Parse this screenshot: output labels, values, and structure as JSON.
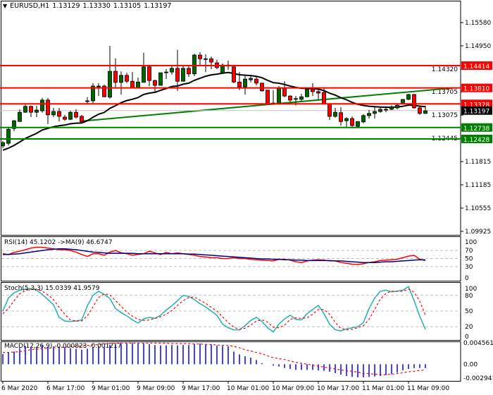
{
  "header": {
    "menu_icon": "triangle-down-icon",
    "symbol": "EURUSD,H1",
    "open": "1.13129",
    "high": "1.13330",
    "low": "1.13105",
    "close": "1.13197"
  },
  "colors": {
    "bull": "#006400",
    "bear": "#ff0000",
    "ma": "#000000",
    "trendline": "#008000",
    "resistance": "#ff0000",
    "support": "#008000",
    "rsi": "#ff0000",
    "rsi_ma": "#000080",
    "stoch_main": "#20b2aa",
    "stoch_signal": "#ff0000",
    "macd_hist": "#0000ff",
    "macd_signal": "#ff0000"
  },
  "chart_data": [
    {
      "type": "candlestick",
      "title": "EURUSD,H1",
      "ylim": [
        1.09925,
        1.1558
      ],
      "y_ticks": [
        "1.15580",
        "1.14950",
        "1.14320",
        "1.13705",
        "1.13075",
        "1.12445",
        "1.11815",
        "1.11185",
        "1.10555",
        "1.09925"
      ],
      "x_tick_labels": [
        "6 Mar 2020",
        "6 Mar 17:00",
        "9 Mar 01:00",
        "9 Mar 09:00",
        "9 Mar 17:00",
        "10 Mar 01:00",
        "10 Mar 09:00",
        "10 Mar 17:00",
        "11 Mar 01:00",
        "11 Mar 09:00"
      ],
      "ohlc": [
        [
          1.1224,
          1.1237,
          1.1218,
          1.1233
        ],
        [
          1.1231,
          1.1276,
          1.1225,
          1.1269
        ],
        [
          1.1271,
          1.1294,
          1.1264,
          1.1292
        ],
        [
          1.129,
          1.1323,
          1.129,
          1.1315
        ],
        [
          1.1315,
          1.1336,
          1.1314,
          1.1331
        ],
        [
          1.1331,
          1.1333,
          1.1302,
          1.1315
        ],
        [
          1.1315,
          1.1333,
          1.1302,
          1.1321
        ],
        [
          1.1319,
          1.1354,
          1.1314,
          1.1348
        ],
        [
          1.1348,
          1.1354,
          1.1283,
          1.1308
        ],
        [
          1.1308,
          1.1327,
          1.1302,
          1.1317
        ],
        [
          1.1317,
          1.1327,
          1.129,
          1.1304
        ],
        [
          1.1302,
          1.1308,
          1.1292,
          1.1296
        ],
        [
          1.1296,
          1.1319,
          1.1294,
          1.1315
        ],
        [
          1.1315,
          1.1323,
          1.1298,
          1.1302
        ],
        [
          1.1304,
          1.1308,
          1.1287,
          1.1289
        ],
        [
          1.1346,
          1.1356,
          1.1336,
          1.1346
        ],
        [
          1.1346,
          1.1394,
          1.1338,
          1.1386
        ],
        [
          1.1386,
          1.1394,
          1.1359,
          1.1386
        ],
        [
          1.1386,
          1.139,
          1.1356,
          1.1357
        ],
        [
          1.1356,
          1.1495,
          1.1352,
          1.1426
        ],
        [
          1.1426,
          1.1461,
          1.1382,
          1.1396
        ],
        [
          1.1396,
          1.1426,
          1.1363,
          1.1415
        ],
        [
          1.1415,
          1.1422,
          1.1394,
          1.1399
        ],
        [
          1.1399,
          1.1424,
          1.138,
          1.1382
        ],
        [
          1.1382,
          1.1409,
          1.138,
          1.1397
        ],
        [
          1.1396,
          1.1476,
          1.1396,
          1.1438
        ],
        [
          1.1438,
          1.1441,
          1.1386,
          1.1401
        ],
        [
          1.1401,
          1.1403,
          1.1371,
          1.1388
        ],
        [
          1.1388,
          1.1422,
          1.1388,
          1.1422
        ],
        [
          1.1424,
          1.1432,
          1.1405,
          1.1424
        ],
        [
          1.1424,
          1.144,
          1.1417,
          1.1434
        ],
        [
          1.1434,
          1.1484,
          1.1373,
          1.1399
        ],
        [
          1.1399,
          1.1443,
          1.1399,
          1.1434
        ],
        [
          1.1434,
          1.1441,
          1.1411,
          1.1419
        ],
        [
          1.1419,
          1.1474,
          1.1413,
          1.147
        ],
        [
          1.147,
          1.1478,
          1.1441,
          1.146
        ],
        [
          1.146,
          1.1472,
          1.1424,
          1.146
        ],
        [
          1.146,
          1.1466,
          1.1432,
          1.1451
        ],
        [
          1.1449,
          1.1457,
          1.1432,
          1.1436
        ],
        [
          1.1422,
          1.1447,
          1.142,
          1.1443
        ],
        [
          1.1443,
          1.1455,
          1.143,
          1.144
        ],
        [
          1.1438,
          1.144,
          1.1394,
          1.1397
        ],
        [
          1.1397,
          1.1424,
          1.1375,
          1.1384
        ],
        [
          1.1384,
          1.1413,
          1.1363,
          1.1405
        ],
        [
          1.1403,
          1.1413,
          1.1396,
          1.1407
        ],
        [
          1.1405,
          1.1411,
          1.1388,
          1.1394
        ],
        [
          1.1394,
          1.1394,
          1.1371,
          1.1373
        ],
        [
          1.1375,
          1.1375,
          1.1336,
          1.1338
        ],
        [
          1.134,
          1.1375,
          1.1336,
          1.1338
        ],
        [
          1.1338,
          1.1386,
          1.1336,
          1.138
        ],
        [
          1.138,
          1.1399,
          1.1356,
          1.1359
        ],
        [
          1.1359,
          1.1361,
          1.1342,
          1.1348
        ],
        [
          1.1352,
          1.1359,
          1.1333,
          1.1352
        ],
        [
          1.135,
          1.1365,
          1.1346,
          1.1357
        ],
        [
          1.1357,
          1.138,
          1.1356,
          1.1378
        ],
        [
          1.1378,
          1.1394,
          1.1359,
          1.1371
        ],
        [
          1.1371,
          1.1378,
          1.1348,
          1.1367
        ],
        [
          1.1369,
          1.1382,
          1.1338,
          1.1338
        ],
        [
          1.1338,
          1.134,
          1.1294,
          1.1304
        ],
        [
          1.1304,
          1.1327,
          1.13,
          1.1315
        ],
        [
          1.1314,
          1.1329,
          1.1279,
          1.129
        ],
        [
          1.1292,
          1.1302,
          1.1275,
          1.1298
        ],
        [
          1.1298,
          1.1304,
          1.1275,
          1.1279
        ],
        [
          1.1277,
          1.129,
          1.1275,
          1.129
        ],
        [
          1.1289,
          1.131,
          1.1285,
          1.1306
        ],
        [
          1.1306,
          1.1321,
          1.1298,
          1.1312
        ],
        [
          1.1312,
          1.1329,
          1.1298,
          1.1317
        ],
        [
          1.1317,
          1.1329,
          1.1314,
          1.1323
        ],
        [
          1.1323,
          1.1331,
          1.1315,
          1.1323
        ],
        [
          1.1323,
          1.1334,
          1.1321,
          1.1329
        ],
        [
          1.1327,
          1.1338,
          1.1323,
          1.1334
        ],
        [
          1.1338,
          1.135,
          1.1336,
          1.135
        ],
        [
          1.135,
          1.1365,
          1.1348,
          1.1363
        ],
        [
          1.1363,
          1.1365,
          1.1325,
          1.1327
        ],
        [
          1.1327,
          1.1333,
          1.1308,
          1.1312
        ],
        [
          1.1312,
          1.1333,
          1.131,
          1.1319
        ]
      ],
      "horizontal_levels": [
        {
          "price": 1.14414,
          "label": "1.14414",
          "kind": "resistance"
        },
        {
          "price": 1.1381,
          "label": "1.13810",
          "kind": "resistance"
        },
        {
          "price": 1.13378,
          "label": "1.13378",
          "kind": "resistance"
        },
        {
          "price": 1.12738,
          "label": "1.12738",
          "kind": "support"
        },
        {
          "price": 1.12428,
          "label": "1.12428",
          "kind": "support"
        }
      ],
      "current_price": "1.13197",
      "trendline": {
        "from": {
          "bar": 14,
          "price": 1.1291
        },
        "to": {
          "bar": 80,
          "price": 1.1381
        }
      }
    },
    {
      "type": "line",
      "title": "RSI(14) 45.1202  ->MA(9) 46.6747",
      "ylim": [
        0,
        100
      ],
      "y_ticks": [
        "100",
        "70",
        "50",
        "30",
        "0"
      ],
      "levels": [
        70,
        50,
        30
      ],
      "series": [
        {
          "name": "RSI(14)",
          "values": [
            62,
            60,
            65,
            68,
            72,
            76,
            78,
            78,
            76,
            74,
            72,
            72,
            70,
            66,
            60,
            55,
            62,
            62,
            58,
            66,
            70,
            64,
            62,
            58,
            60,
            62,
            68,
            64,
            60,
            65,
            62,
            64,
            62,
            60,
            58,
            55,
            54,
            52,
            52,
            50,
            50,
            52,
            50,
            50,
            48,
            47,
            46,
            45,
            44,
            48,
            48,
            46,
            42,
            40,
            44,
            46,
            47,
            46,
            44,
            44,
            40,
            38,
            36,
            35,
            37,
            40,
            42,
            45,
            46,
            47,
            48,
            52,
            56,
            58,
            48,
            45
          ]
        },
        {
          "name": "MA(9)",
          "values": [
            60,
            60,
            61,
            62,
            64,
            66,
            68,
            70,
            72,
            73,
            74,
            74,
            73,
            72,
            70,
            68,
            66,
            65,
            64,
            63,
            63,
            63,
            63,
            63,
            62,
            62,
            62,
            62,
            62,
            62,
            62,
            62,
            62,
            61,
            61,
            60,
            59,
            58,
            57,
            56,
            55,
            54,
            53,
            52,
            51,
            50,
            49,
            49,
            48,
            48,
            47,
            47,
            46,
            46,
            45,
            45,
            45,
            45,
            45,
            44,
            44,
            43,
            42,
            41,
            40,
            40,
            40,
            41,
            42,
            42,
            43,
            44,
            45,
            46,
            47,
            46.67
          ]
        }
      ]
    },
    {
      "type": "line",
      "title": "Stoch(5,3,3) 15.0339 41.9579",
      "ylim": [
        0,
        100
      ],
      "y_ticks": [
        "100",
        "80",
        "50",
        "20",
        "0"
      ],
      "levels": [
        80,
        50,
        20
      ],
      "series": [
        {
          "name": "Stoch main",
          "values": [
            50,
            75,
            85,
            90,
            92,
            93,
            90,
            82,
            72,
            62,
            38,
            31,
            30,
            31,
            33,
            60,
            80,
            88,
            82,
            74,
            55,
            47,
            41,
            33,
            27,
            35,
            38,
            36,
            42,
            52,
            60,
            70,
            80,
            78,
            72,
            64,
            58,
            50,
            42,
            25,
            18,
            14,
            14,
            22,
            32,
            38,
            30,
            18,
            10,
            25,
            35,
            42,
            34,
            33,
            45,
            53,
            61,
            45,
            25,
            14,
            12,
            16,
            18,
            20,
            28,
            55,
            75,
            88,
            90,
            87,
            88,
            90,
            97,
            70,
            40,
            15.03
          ]
        },
        {
          "name": "Stoch signal",
          "values": [
            45,
            55,
            70,
            83,
            89,
            92,
            92,
            88,
            81,
            72,
            57,
            44,
            33,
            31,
            31,
            41,
            58,
            76,
            83,
            81,
            70,
            59,
            48,
            40,
            34,
            32,
            33,
            36,
            39,
            44,
            51,
            61,
            70,
            76,
            77,
            71,
            65,
            57,
            50,
            39,
            28,
            19,
            15,
            17,
            23,
            31,
            33,
            29,
            19,
            18,
            23,
            34,
            37,
            36,
            37,
            44,
            53,
            53,
            44,
            28,
            17,
            14,
            15,
            18,
            22,
            34,
            53,
            73,
            84,
            88,
            88,
            88,
            92,
            86,
            69,
            41.96
          ]
        }
      ]
    },
    {
      "type": "bar",
      "title": "MACD(12,26,9) -0.000823 -0.001217",
      "ylim": [
        -0.002941,
        0.004561
      ],
      "y_ticks": [
        "0.004561",
        "0.00",
        "-0.002941"
      ],
      "series": [
        {
          "name": "MACD",
          "values": [
            0.0022,
            0.0026,
            0.0027,
            0.0034,
            0.0039,
            0.0035,
            0.0037,
            0.004,
            0.0037,
            0.0038,
            0.0037,
            0.0035,
            0.0034,
            0.0033,
            0.0031,
            0.0033,
            0.0036,
            0.0038,
            0.0037,
            0.0041,
            0.0042,
            0.0043,
            0.0045,
            0.0045,
            0.0044,
            0.0044,
            0.0043,
            0.0041,
            0.004,
            0.004,
            0.0041,
            0.004,
            0.0041,
            0.0041,
            0.0043,
            0.0044,
            0.0043,
            0.0042,
            0.004,
            0.0039,
            0.0038,
            0.0027,
            0.0021,
            0.0017,
            0.0014,
            0.0009,
            0.0002,
            0.0,
            -0.0003,
            -0.0005,
            -0.0008,
            -0.001,
            -0.0012,
            -0.0012,
            -0.0012,
            -0.0012,
            -0.0013,
            -0.0014,
            -0.0016,
            -0.0019,
            -0.0022,
            -0.0025,
            -0.0027,
            -0.0028,
            -0.0028,
            -0.0027,
            -0.0026,
            -0.0025,
            -0.0023,
            -0.0021,
            -0.0018,
            -0.0013,
            -0.001,
            -0.0008,
            -0.0008,
            -0.000823
          ]
        },
        {
          "name": "Signal",
          "values": [
            0.0025,
            0.0025,
            0.0026,
            0.0027,
            0.0029,
            0.0031,
            0.0032,
            0.0033,
            0.0034,
            0.0035,
            0.0036,
            0.0036,
            0.0037,
            0.0038,
            0.0039,
            0.004,
            0.0041,
            0.0042,
            0.0043,
            0.0044,
            0.0045,
            0.0045,
            0.0045,
            0.0045,
            0.0045,
            0.0045,
            0.0045,
            0.0045,
            0.0045,
            0.0045,
            0.0044,
            0.0044,
            0.0044,
            0.0044,
            0.0043,
            0.0043,
            0.0042,
            0.0042,
            0.0041,
            0.004,
            0.004,
            0.0038,
            0.0035,
            0.0031,
            0.0028,
            0.0025,
            0.0022,
            0.0018,
            0.0014,
            0.0012,
            0.001,
            0.0007,
            0.0004,
            0.0002,
            0.0,
            -0.0002,
            -0.0004,
            -0.0006,
            -0.0008,
            -0.001,
            -0.0012,
            -0.0014,
            -0.0015,
            -0.0017,
            -0.0019,
            -0.002,
            -0.0021,
            -0.0022,
            -0.0022,
            -0.0021,
            -0.002,
            -0.0018,
            -0.0016,
            -0.0015,
            -0.0013,
            -0.001217
          ]
        }
      ]
    }
  ]
}
